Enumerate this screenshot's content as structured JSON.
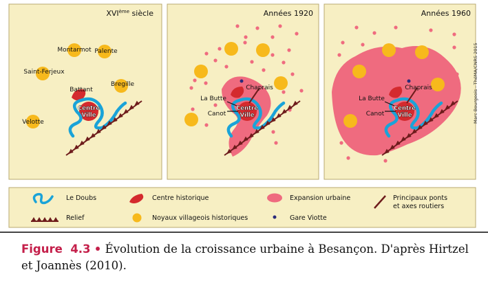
{
  "panels": [
    {
      "period": "XVI",
      "period_sup": "ème",
      "period_tail": " siècle"
    },
    {
      "period": "Années 1920"
    },
    {
      "period": "Années 1960"
    }
  ],
  "places": {
    "montarmot": "Montarmot",
    "palente": "Palente",
    "saint_ferjeux": "Saint-Ferjeux",
    "battant": "Battant",
    "bregille": "Bregille",
    "velotte": "Velotte",
    "centre_ville_1": "Centre",
    "centre_ville_2": "Ville",
    "chaprais": "Chaprais",
    "la_butte": "La Butte",
    "canot": "Canot"
  },
  "credit": "Marc Bourgeois - ThéMA/CNRS 2015",
  "legend": {
    "doubs": "Le Doubs",
    "relief": "Relief",
    "centre_historique": "Centre historique",
    "noyaux": "Noyaux villageois historiques",
    "expansion": "Expansion urbaine",
    "gare": "Gare Viotte",
    "ponts_1": "Principaux ponts",
    "ponts_2": "et axes routiers"
  },
  "caption": {
    "label": "Figure",
    "number": "4.3",
    "bullet": "•",
    "text": "Évolution de la croissance urbaine à Besançon. D'après Hirtzel et Joannès (2010)."
  },
  "colors": {
    "panel_bg": "#f7efc3",
    "panel_border": "#b8a970",
    "river": "#1aa3d8",
    "centre_red": "#d42a2e",
    "village_yellow": "#f7b91c",
    "expansion_pink": "#ef6b7f",
    "relief_brown": "#6e1c1c",
    "gare_blue": "#2a2a7a",
    "figure_label": "#c41f4a"
  }
}
